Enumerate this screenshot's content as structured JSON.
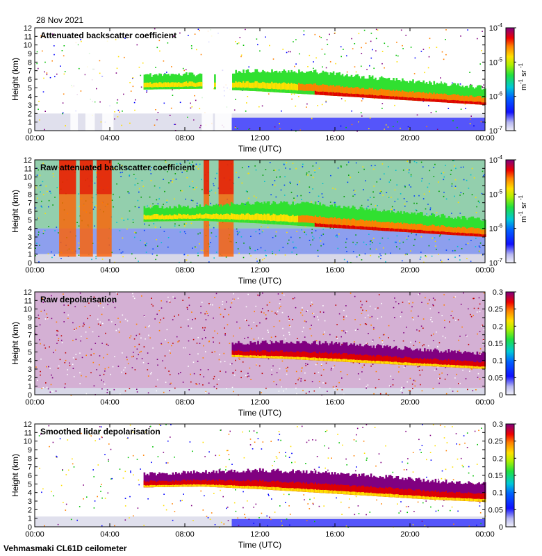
{
  "figure": {
    "date": "28 Nov 2021",
    "footer": "Vehmasmaki CL61D ceilometer"
  },
  "colors": {
    "low": "#d8d8e8",
    "blue": "#1a1aff",
    "cyan": "#00c0d0",
    "green": "#30e030",
    "yellow": "#ffe000",
    "orange": "#ff8000",
    "red": "#e00000",
    "purple": "#800080"
  },
  "chart_data": [
    {
      "type": "heatmap",
      "title": "Attenuated backscatter coefficient",
      "xlabel": "Time (UTC)",
      "ylabel": "Height (km)",
      "xlim": [
        0,
        24
      ],
      "ylim": [
        0,
        12
      ],
      "x_ticks": [
        "00:00",
        "04:00",
        "08:00",
        "12:00",
        "16:00",
        "20:00",
        "00:00"
      ],
      "y_ticks": [
        "0",
        "1",
        "2",
        "3",
        "4",
        "5",
        "6",
        "7",
        "8",
        "9",
        "10",
        "11",
        "12"
      ],
      "colorbar": {
        "scale": "log",
        "range": [
          1e-07,
          0.0001
        ],
        "ticks": [
          {
            "base": "10",
            "exp": "-7"
          },
          {
            "base": "10",
            "exp": "-6"
          },
          {
            "base": "10",
            "exp": "-5"
          },
          {
            "base": "10",
            "exp": "-4"
          }
        ],
        "unit": {
          "a": "m",
          "a_exp": "-1",
          "b": "sr",
          "b_exp": "-1"
        }
      },
      "features": {
        "cloud_layer": {
          "start_hour": 5.8,
          "end_hour": 24,
          "top_km": [
            6.5,
            6.6,
            7.0,
            6.9,
            6.2,
            5.6,
            5.0
          ],
          "base_km": [
            4.8,
            4.9,
            4.6,
            4.2,
            3.8,
            3.4,
            3.0
          ],
          "peak_color": "red"
        },
        "boundary_layer_km": 2.0,
        "missing_data_hours": [
          [
            1.9,
            2.3
          ],
          [
            2.7,
            3.2
          ],
          [
            3.6,
            4.2
          ],
          [
            8.9,
            9.5
          ],
          [
            9.6,
            10.5
          ]
        ]
      }
    },
    {
      "type": "heatmap",
      "title": "Raw attenuated backscatter coefficient",
      "xlabel": "Time (UTC)",
      "ylabel": "Height (km)",
      "xlim": [
        0,
        24
      ],
      "ylim": [
        0,
        12
      ],
      "x_ticks": [
        "00:00",
        "04:00",
        "08:00",
        "12:00",
        "16:00",
        "20:00",
        "00:00"
      ],
      "y_ticks": [
        "0",
        "1",
        "2",
        "3",
        "4",
        "5",
        "6",
        "7",
        "8",
        "9",
        "10",
        "11",
        "12"
      ],
      "colorbar": {
        "scale": "log",
        "range": [
          1e-07,
          0.0001
        ],
        "ticks": [
          {
            "base": "10",
            "exp": "-7"
          },
          {
            "base": "10",
            "exp": "-6"
          },
          {
            "base": "10",
            "exp": "-5"
          },
          {
            "base": "10",
            "exp": "-4"
          }
        ],
        "unit": {
          "a": "m",
          "a_exp": "-1",
          "b": "sr",
          "b_exp": "-1"
        }
      },
      "features": {
        "cloud_layer": {
          "start_hour": 5.8,
          "end_hour": 24,
          "top_km": [
            6.5,
            6.6,
            7.0,
            6.9,
            6.2,
            5.6,
            5.0
          ],
          "base_km": [
            4.8,
            4.9,
            4.6,
            4.2,
            3.8,
            3.4,
            3.0
          ],
          "peak_color": "red"
        },
        "noise_background": "green",
        "precip_columns_hours": [
          [
            1.3,
            2.2
          ],
          [
            2.4,
            3.1
          ],
          [
            3.3,
            4.1
          ],
          [
            9.0,
            9.3
          ],
          [
            9.8,
            10.6
          ]
        ]
      }
    },
    {
      "type": "heatmap",
      "title": "Raw depolarisation",
      "xlabel": "Time (UTC)",
      "ylabel": "Height (km)",
      "xlim": [
        0,
        24
      ],
      "ylim": [
        0,
        12
      ],
      "x_ticks": [
        "00:00",
        "04:00",
        "08:00",
        "12:00",
        "16:00",
        "20:00",
        "00:00"
      ],
      "y_ticks": [
        "0",
        "1",
        "2",
        "3",
        "4",
        "5",
        "6",
        "7",
        "8",
        "9",
        "10",
        "11",
        "12"
      ],
      "colorbar": {
        "scale": "linear",
        "range": [
          0,
          0.3
        ],
        "ticks": [
          "0",
          "0.05",
          "0.1",
          "0.15",
          "0.2",
          "0.25",
          "0.3"
        ]
      },
      "features": {
        "noise_background": "purple",
        "cloud_layer": {
          "start_hour": 10.5,
          "end_hour": 24,
          "top_km": [
            6.0,
            6.2,
            6.0,
            5.6,
            5.2,
            4.8
          ],
          "base_km": [
            4.4,
            4.2,
            3.9,
            3.6,
            3.3,
            3.0
          ]
        }
      }
    },
    {
      "type": "heatmap",
      "title": "Smoothed lidar depolarisation",
      "xlabel": "Time (UTC)",
      "ylabel": "Height (km)",
      "xlim": [
        0,
        24
      ],
      "ylim": [
        0,
        12
      ],
      "x_ticks": [
        "00:00",
        "04:00",
        "08:00",
        "12:00",
        "16:00",
        "20:00",
        "00:00"
      ],
      "y_ticks": [
        "0",
        "1",
        "2",
        "3",
        "4",
        "5",
        "6",
        "7",
        "8",
        "9",
        "10",
        "11",
        "12"
      ],
      "colorbar": {
        "scale": "linear",
        "range": [
          0,
          0.3
        ],
        "ticks": [
          "0",
          "0.05",
          "0.1",
          "0.15",
          "0.2",
          "0.25",
          "0.3"
        ]
      },
      "features": {
        "cloud_layer": {
          "start_hour": 5.8,
          "end_hour": 24,
          "top_km": [
            6.2,
            6.4,
            6.6,
            6.4,
            6.0,
            5.4,
            5.0
          ],
          "base_km": [
            4.6,
            4.7,
            4.4,
            4.0,
            3.6,
            3.2,
            2.9
          ]
        },
        "boundary_layer_km": 1.2
      }
    }
  ]
}
